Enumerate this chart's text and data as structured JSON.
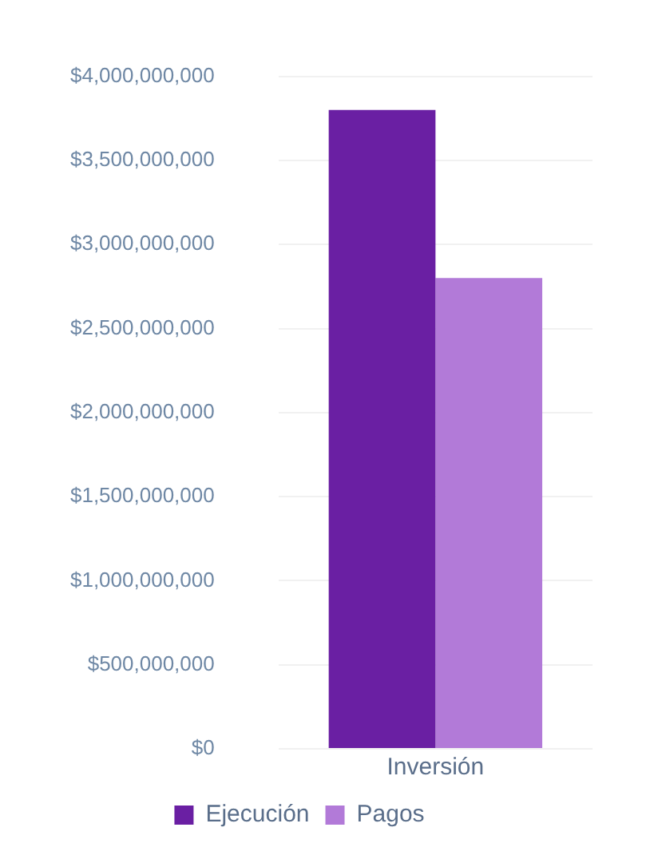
{
  "chart_data": {
    "type": "bar",
    "categories": [
      "Inversión"
    ],
    "series": [
      {
        "name": "Ejecución",
        "color": "#6a1fa3",
        "values": [
          3800000000
        ]
      },
      {
        "name": "Pagos",
        "color": "#b27ad8",
        "values": [
          2800000000
        ]
      }
    ],
    "ylim": [
      0,
      4000000000
    ],
    "yticks": [
      {
        "value": 0,
        "label": "$0"
      },
      {
        "value": 500000000,
        "label": "$500,000,000"
      },
      {
        "value": 1000000000,
        "label": "$1,000,000,000"
      },
      {
        "value": 1500000000,
        "label": "$1,500,000,000"
      },
      {
        "value": 2000000000,
        "label": "$2,000,000,000"
      },
      {
        "value": 2500000000,
        "label": "$2,500,000,000"
      },
      {
        "value": 3000000000,
        "label": "$3,000,000,000"
      },
      {
        "value": 3500000000,
        "label": "$3,500,000,000"
      },
      {
        "value": 4000000000,
        "label": "$4,000,000,000"
      }
    ],
    "grid": "y",
    "legend": "bottom"
  }
}
